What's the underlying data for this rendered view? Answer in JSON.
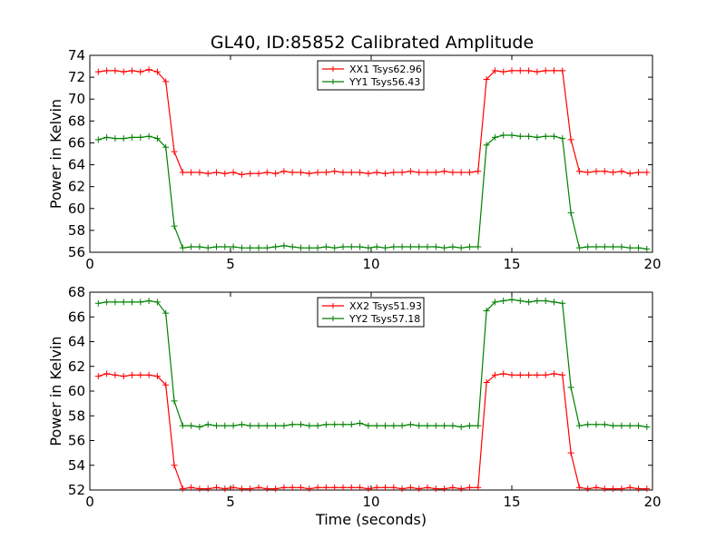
{
  "figure": {
    "title": "GL40, ID:85852 Calibrated Amplitude"
  },
  "colors": {
    "series_a": "#ff0000",
    "series_b": "#008000",
    "axes": "#000000",
    "background": "#ffffff"
  },
  "chart_data": [
    {
      "type": "line",
      "title": "GL40, ID:85852 Calibrated Amplitude",
      "xlabel": "",
      "ylabel": "Power in Kelvin",
      "xlim": [
        0,
        20
      ],
      "ylim": [
        56,
        74
      ],
      "xticks": [
        0,
        5,
        10,
        15,
        20
      ],
      "yticks": [
        56,
        58,
        60,
        62,
        64,
        66,
        68,
        70,
        72,
        74
      ],
      "grid": false,
      "legend_position": "top-center",
      "marker": "plus",
      "series": [
        {
          "name": "XX1 Tsys62.96",
          "color": "#ff0000",
          "x": [
            0.3,
            0.6,
            0.9,
            1.2,
            1.5,
            1.8,
            2.1,
            2.4,
            2.7,
            3.0,
            3.3,
            3.6,
            3.9,
            4.2,
            4.5,
            4.8,
            5.1,
            5.4,
            5.7,
            6.0,
            6.3,
            6.6,
            6.9,
            7.2,
            7.5,
            7.8,
            8.1,
            8.4,
            8.7,
            9.0,
            9.3,
            9.6,
            9.9,
            10.2,
            10.5,
            10.8,
            11.1,
            11.4,
            11.7,
            12.0,
            12.3,
            12.6,
            12.9,
            13.2,
            13.5,
            13.8,
            14.1,
            14.4,
            14.7,
            15.0,
            15.3,
            15.6,
            15.9,
            16.2,
            16.5,
            16.8,
            17.1,
            17.4,
            17.7,
            18.0,
            18.3,
            18.6,
            18.9,
            19.2,
            19.5,
            19.8
          ],
          "y": [
            72.5,
            72.6,
            72.6,
            72.5,
            72.6,
            72.5,
            72.7,
            72.5,
            71.6,
            65.2,
            63.3,
            63.3,
            63.3,
            63.2,
            63.3,
            63.2,
            63.3,
            63.1,
            63.2,
            63.2,
            63.3,
            63.2,
            63.4,
            63.3,
            63.3,
            63.2,
            63.3,
            63.3,
            63.4,
            63.3,
            63.3,
            63.3,
            63.2,
            63.3,
            63.2,
            63.3,
            63.3,
            63.4,
            63.3,
            63.3,
            63.3,
            63.4,
            63.3,
            63.3,
            63.3,
            63.4,
            71.8,
            72.6,
            72.5,
            72.6,
            72.6,
            72.6,
            72.5,
            72.6,
            72.6,
            72.6,
            66.3,
            63.4,
            63.3,
            63.4,
            63.4,
            63.3,
            63.4,
            63.2,
            63.3,
            63.3
          ]
        },
        {
          "name": "YY1 Tsys56.43",
          "color": "#008000",
          "x": [
            0.3,
            0.6,
            0.9,
            1.2,
            1.5,
            1.8,
            2.1,
            2.4,
            2.7,
            3.0,
            3.3,
            3.6,
            3.9,
            4.2,
            4.5,
            4.8,
            5.1,
            5.4,
            5.7,
            6.0,
            6.3,
            6.6,
            6.9,
            7.2,
            7.5,
            7.8,
            8.1,
            8.4,
            8.7,
            9.0,
            9.3,
            9.6,
            9.9,
            10.2,
            10.5,
            10.8,
            11.1,
            11.4,
            11.7,
            12.0,
            12.3,
            12.6,
            12.9,
            13.2,
            13.5,
            13.8,
            14.1,
            14.4,
            14.7,
            15.0,
            15.3,
            15.6,
            15.9,
            16.2,
            16.5,
            16.8,
            17.1,
            17.4,
            17.7,
            18.0,
            18.3,
            18.6,
            18.9,
            19.2,
            19.5,
            19.8
          ],
          "y": [
            66.3,
            66.5,
            66.4,
            66.4,
            66.5,
            66.5,
            66.6,
            66.4,
            65.6,
            58.4,
            56.4,
            56.5,
            56.5,
            56.4,
            56.5,
            56.5,
            56.5,
            56.4,
            56.4,
            56.4,
            56.4,
            56.5,
            56.6,
            56.5,
            56.4,
            56.4,
            56.4,
            56.5,
            56.4,
            56.5,
            56.5,
            56.5,
            56.4,
            56.5,
            56.4,
            56.5,
            56.5,
            56.5,
            56.5,
            56.5,
            56.5,
            56.4,
            56.5,
            56.4,
            56.5,
            56.5,
            65.8,
            66.5,
            66.7,
            66.7,
            66.6,
            66.6,
            66.5,
            66.6,
            66.6,
            66.4,
            59.6,
            56.4,
            56.5,
            56.5,
            56.5,
            56.5,
            56.5,
            56.4,
            56.4,
            56.3
          ]
        }
      ]
    },
    {
      "type": "line",
      "title": "",
      "xlabel": "Time (seconds)",
      "ylabel": "Power in Kelvin",
      "xlim": [
        0,
        20
      ],
      "ylim": [
        52,
        68
      ],
      "xticks": [
        0,
        5,
        10,
        15,
        20
      ],
      "yticks": [
        52,
        54,
        56,
        58,
        60,
        62,
        64,
        66,
        68
      ],
      "grid": false,
      "legend_position": "top-center",
      "marker": "plus",
      "series": [
        {
          "name": "XX2 Tsys51.93",
          "color": "#ff0000",
          "x": [
            0.3,
            0.6,
            0.9,
            1.2,
            1.5,
            1.8,
            2.1,
            2.4,
            2.7,
            3.0,
            3.3,
            3.6,
            3.9,
            4.2,
            4.5,
            4.8,
            5.1,
            5.4,
            5.7,
            6.0,
            6.3,
            6.6,
            6.9,
            7.2,
            7.5,
            7.8,
            8.1,
            8.4,
            8.7,
            9.0,
            9.3,
            9.6,
            9.9,
            10.2,
            10.5,
            10.8,
            11.1,
            11.4,
            11.7,
            12.0,
            12.3,
            12.6,
            12.9,
            13.2,
            13.5,
            13.8,
            14.1,
            14.4,
            14.7,
            15.0,
            15.3,
            15.6,
            15.9,
            16.2,
            16.5,
            16.8,
            17.1,
            17.4,
            17.7,
            18.0,
            18.3,
            18.6,
            18.9,
            19.2,
            19.5,
            19.8
          ],
          "y": [
            61.2,
            61.4,
            61.3,
            61.2,
            61.3,
            61.3,
            61.3,
            61.2,
            60.5,
            54.0,
            52.1,
            52.2,
            52.1,
            52.1,
            52.2,
            52.1,
            52.2,
            52.1,
            52.1,
            52.2,
            52.1,
            52.1,
            52.2,
            52.2,
            52.2,
            52.1,
            52.2,
            52.2,
            52.2,
            52.2,
            52.2,
            52.2,
            52.1,
            52.2,
            52.2,
            52.2,
            52.1,
            52.2,
            52.1,
            52.2,
            52.1,
            52.1,
            52.2,
            52.1,
            52.2,
            52.2,
            60.7,
            61.3,
            61.4,
            61.3,
            61.3,
            61.3,
            61.3,
            61.3,
            61.4,
            61.3,
            55.0,
            52.2,
            52.1,
            52.2,
            52.1,
            52.1,
            52.1,
            52.2,
            52.1,
            52.1
          ]
        },
        {
          "name": "YY2 Tsys57.18",
          "color": "#008000",
          "x": [
            0.3,
            0.6,
            0.9,
            1.2,
            1.5,
            1.8,
            2.1,
            2.4,
            2.7,
            3.0,
            3.3,
            3.6,
            3.9,
            4.2,
            4.5,
            4.8,
            5.1,
            5.4,
            5.7,
            6.0,
            6.3,
            6.6,
            6.9,
            7.2,
            7.5,
            7.8,
            8.1,
            8.4,
            8.7,
            9.0,
            9.3,
            9.6,
            9.9,
            10.2,
            10.5,
            10.8,
            11.1,
            11.4,
            11.7,
            12.0,
            12.3,
            12.6,
            12.9,
            13.2,
            13.5,
            13.8,
            14.1,
            14.4,
            14.7,
            15.0,
            15.3,
            15.6,
            15.9,
            16.2,
            16.5,
            16.8,
            17.1,
            17.4,
            17.7,
            18.0,
            18.3,
            18.6,
            18.9,
            19.2,
            19.5,
            19.8
          ],
          "y": [
            67.1,
            67.2,
            67.2,
            67.2,
            67.2,
            67.2,
            67.3,
            67.2,
            66.3,
            59.2,
            57.2,
            57.2,
            57.1,
            57.3,
            57.2,
            57.2,
            57.2,
            57.3,
            57.2,
            57.2,
            57.2,
            57.2,
            57.2,
            57.3,
            57.3,
            57.2,
            57.2,
            57.3,
            57.3,
            57.3,
            57.3,
            57.4,
            57.2,
            57.2,
            57.2,
            57.2,
            57.2,
            57.3,
            57.2,
            57.2,
            57.2,
            57.2,
            57.2,
            57.1,
            57.2,
            57.2,
            66.5,
            67.2,
            67.3,
            67.4,
            67.3,
            67.2,
            67.3,
            67.3,
            67.2,
            67.1,
            60.3,
            57.2,
            57.3,
            57.3,
            57.3,
            57.2,
            57.2,
            57.2,
            57.2,
            57.1
          ]
        }
      ]
    }
  ]
}
